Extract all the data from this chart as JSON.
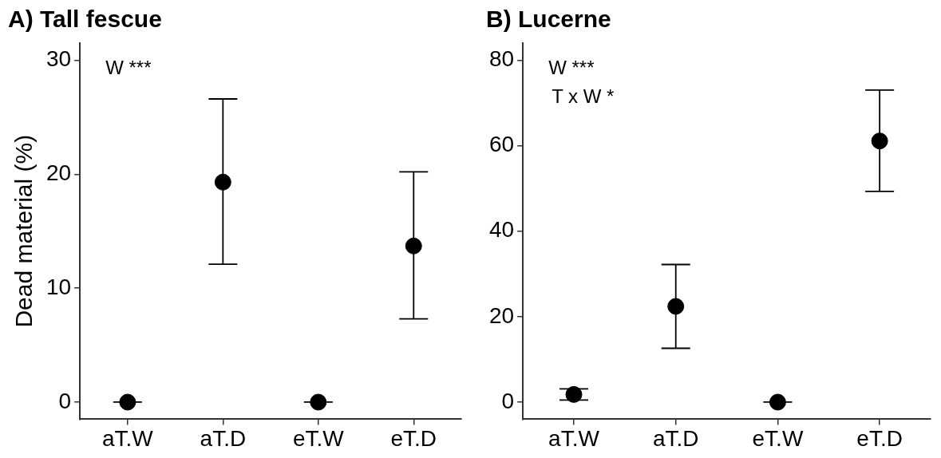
{
  "chart_data": [
    {
      "type": "scatter",
      "title": "A) Tall fescue",
      "ylabel": "Dead material (%)",
      "categories": [
        "aT.W",
        "aT.D",
        "eT.W",
        "eT.D"
      ],
      "series": [
        {
          "color": "#000000",
          "values": [
            0,
            19.3,
            0,
            13.7
          ],
          "errors": [
            0,
            [
              12.1,
              26.6
            ],
            0,
            [
              7.3,
              20.2
            ]
          ]
        }
      ],
      "ylim": [
        -1.5,
        31.5
      ],
      "yticks": [
        0,
        10,
        20,
        30
      ],
      "grid": false,
      "legend": false,
      "marker": "circle",
      "annotations": [
        "W ***"
      ]
    },
    {
      "type": "scatter",
      "title": "B) Lucerne",
      "categories": [
        "aT.W",
        "aT.D",
        "eT.W",
        "eT.D"
      ],
      "series": [
        {
          "color": "#000000",
          "values": [
            1.8,
            22.4,
            0,
            61.1
          ],
          "errors": [
            [
              0.5,
              3.1
            ],
            [
              12.6,
              32.2
            ],
            0,
            [
              49.3,
              73.0
            ]
          ]
        }
      ],
      "ylim": [
        -4,
        84
      ],
      "yticks": [
        0,
        20,
        40,
        60,
        80
      ],
      "grid": false,
      "legend": false,
      "marker": "circle",
      "annotations": [
        "W ***",
        "T x W *"
      ]
    }
  ]
}
